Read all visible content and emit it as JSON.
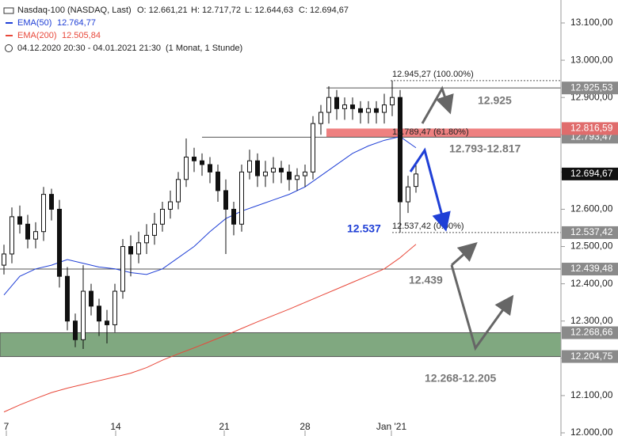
{
  "header": {
    "instrument": "Nasdaq-100 (NASDAQ, Last)",
    "ohlc": [
      "O: 12.661,21",
      "H: 12.717,72",
      "L: 12.644,63",
      "C: 12.694,67"
    ],
    "ema50_value": "12.764,77",
    "ema200_value": "12.505,84",
    "range": "04.12.2020 20:30 - 04.01.2021 21:30",
    "interval": "(1 Monat, 1 Stunde)"
  },
  "chart_data": {
    "type": "candlestick",
    "x": [
      0,
      1,
      2,
      3,
      4,
      5,
      6,
      7,
      8,
      9,
      10,
      11,
      12,
      13,
      14,
      15,
      16,
      17,
      18,
      19,
      20,
      21,
      22,
      23,
      24,
      25,
      26,
      27,
      28,
      29,
      30,
      31,
      32,
      33,
      34,
      35,
      36,
      37,
      38,
      39,
      40,
      41,
      42,
      43,
      44,
      45,
      46,
      47,
      48,
      49,
      50,
      51,
      52
    ],
    "open": [
      12450,
      12480,
      12580,
      12560,
      12520,
      12540,
      12640,
      12600,
      12420,
      12300,
      12250,
      12380,
      12340,
      12300,
      12290,
      12380,
      12500,
      12480,
      12510,
      12530,
      12560,
      12600,
      12620,
      12680,
      12740,
      12730,
      12720,
      12700,
      12650,
      12600,
      12560,
      12700,
      12730,
      12690,
      12700,
      12710,
      12700,
      12680,
      12690,
      12700,
      12830,
      12860,
      12900,
      12870,
      12880,
      12870,
      12860,
      12870,
      12860,
      12880,
      12900,
      12620,
      12661.21
    ],
    "high": [
      12505,
      12605,
      12610,
      12585,
      12565,
      12660,
      12655,
      12625,
      12445,
      12320,
      12450,
      12400,
      12360,
      12330,
      12400,
      12520,
      12530,
      12540,
      12560,
      12590,
      12620,
      12650,
      12700,
      12790,
      12765,
      12750,
      12740,
      12720,
      12680,
      12620,
      12720,
      12760,
      12750,
      12730,
      12740,
      12730,
      12720,
      12710,
      12720,
      12850,
      12880,
      12930,
      12920,
      12900,
      12900,
      12890,
      12890,
      12890,
      12910,
      12945.27,
      12920,
      12690,
      12717.72
    ],
    "low": [
      12425,
      12455,
      12535,
      12495,
      12495,
      12515,
      12570,
      12390,
      12275,
      12230,
      12225,
      12315,
      12260,
      12240,
      12270,
      12360,
      12420,
      12455,
      12480,
      12505,
      12540,
      12575,
      12600,
      12660,
      12700,
      12690,
      12670,
      12620,
      12480,
      12530,
      12540,
      12680,
      12660,
      12660,
      12670,
      12670,
      12650,
      12650,
      12660,
      12680,
      12800,
      12830,
      12840,
      12840,
      12840,
      12830,
      12830,
      12830,
      12830,
      12850,
      12537.42,
      12590,
      12644.63
    ],
    "close": [
      12480,
      12580,
      12560,
      12520,
      12540,
      12640,
      12600,
      12420,
      12300,
      12250,
      12380,
      12340,
      12300,
      12290,
      12380,
      12500,
      12480,
      12510,
      12530,
      12560,
      12600,
      12620,
      12680,
      12740,
      12730,
      12720,
      12700,
      12650,
      12600,
      12560,
      12700,
      12730,
      12690,
      12700,
      12710,
      12700,
      12680,
      12690,
      12700,
      12830,
      12860,
      12900,
      12870,
      12880,
      12870,
      12860,
      12870,
      12860,
      12880,
      12900,
      12620,
      12660,
      12694.67
    ],
    "series": [
      {
        "name": "EMA(50)",
        "color": "#1f3fd6",
        "x": [
          0,
          2,
          4,
          6,
          8,
          10,
          12,
          14,
          16,
          18,
          20,
          22,
          24,
          26,
          28,
          30,
          32,
          34,
          36,
          38,
          40,
          42,
          44,
          46,
          48,
          50,
          52
        ],
        "values": [
          12370,
          12420,
          12440,
          12450,
          12465,
          12455,
          12445,
          12440,
          12430,
          12425,
          12440,
          12470,
          12500,
          12540,
          12575,
          12595,
          12610,
          12625,
          12640,
          12660,
          12690,
          12720,
          12750,
          12770,
          12785,
          12795,
          12765
        ]
      },
      {
        "name": "EMA(200)",
        "color": "#e8483a",
        "x": [
          0,
          2,
          4,
          6,
          8,
          10,
          12,
          14,
          16,
          18,
          20,
          22,
          24,
          26,
          28,
          30,
          32,
          34,
          36,
          38,
          40,
          42,
          44,
          46,
          48,
          50,
          52
        ],
        "values": [
          12056,
          12075,
          12092,
          12108,
          12120,
          12130,
          12140,
          12150,
          12160,
          12175,
          12195,
          12212,
          12228,
          12245,
          12262,
          12280,
          12298,
          12315,
          12332,
          12350,
          12368,
          12386,
          12404,
          12422,
          12440,
          12470,
          12506
        ]
      }
    ],
    "xlim": [
      -0.5,
      70.3
    ],
    "xticks": [
      {
        "value": 0.3,
        "label": "7"
      },
      {
        "value": 14.1,
        "label": "14"
      },
      {
        "value": 27.8,
        "label": "21"
      },
      {
        "value": 38,
        "label": "28"
      },
      {
        "value": 48.9,
        "label": "Jan '21"
      }
    ],
    "ylim": [
      12000,
      13100
    ],
    "yticks": [
      {
        "value": 12000,
        "label": "12.000,00"
      },
      {
        "value": 12100,
        "label": "12.100,00"
      },
      {
        "value": 12200,
        "label": "12.200,00"
      },
      {
        "value": 12300,
        "label": "12.300,00"
      },
      {
        "value": 12400,
        "label": "12.400,00"
      },
      {
        "value": 12500,
        "label": "12.500,00"
      },
      {
        "value": 12600,
        "label": "12.600,00"
      },
      {
        "value": 12700,
        "label": "12.700,00"
      },
      {
        "value": 12800,
        "label": "12.800,00"
      },
      {
        "value": 12900,
        "label": "12.900,00"
      },
      {
        "value": 13000,
        "label": "13.000,00"
      },
      {
        "value": 13100,
        "label": "13.100,00"
      }
    ],
    "grid": false,
    "zones": [
      {
        "low": 12204.75,
        "high": 12268.66,
        "color": "#80a880"
      },
      {
        "low": 12793.47,
        "high": 12816.59,
        "color": "#ee8080"
      }
    ],
    "price_levels": [
      {
        "value": 12925.53,
        "label": "12.925,53",
        "color": "#8a8a8a"
      },
      {
        "value": 12793.47,
        "label": "12.793,47",
        "color": "#8a8a8a"
      },
      {
        "value": 12816.59,
        "label": "12.816,59",
        "color": "#e06c6c"
      },
      {
        "value": 12694.67,
        "label": "12.694,67",
        "color": "#111111"
      },
      {
        "value": 12537.42,
        "label": "12.537,42",
        "color": "#8a8a8a"
      },
      {
        "value": 12439.48,
        "label": "12.439,48",
        "color": "#8a8a8a"
      },
      {
        "value": 12268.66,
        "label": "12.268,66",
        "color": "#8a8a8a"
      },
      {
        "value": 12204.75,
        "label": "12.204,75",
        "color": "#8a8a8a"
      }
    ],
    "fib_labels": [
      {
        "value": 12945.27,
        "label": "12.945,27 (100.00%)"
      },
      {
        "value": 12789.47,
        "label": "12.789,47 (61.80%)"
      },
      {
        "value": 12537.42,
        "label": "12.537,42 (0.00%)"
      }
    ],
    "annotations": [
      {
        "text": "12.925",
        "color": "#777777"
      },
      {
        "text": "12.793-12.817",
        "color": "#777777"
      },
      {
        "text": "12.537",
        "color": "#1f3fd6"
      },
      {
        "text": "12.439",
        "color": "#777777"
      },
      {
        "text": "12.268-12.205",
        "color": "#777777"
      }
    ]
  }
}
